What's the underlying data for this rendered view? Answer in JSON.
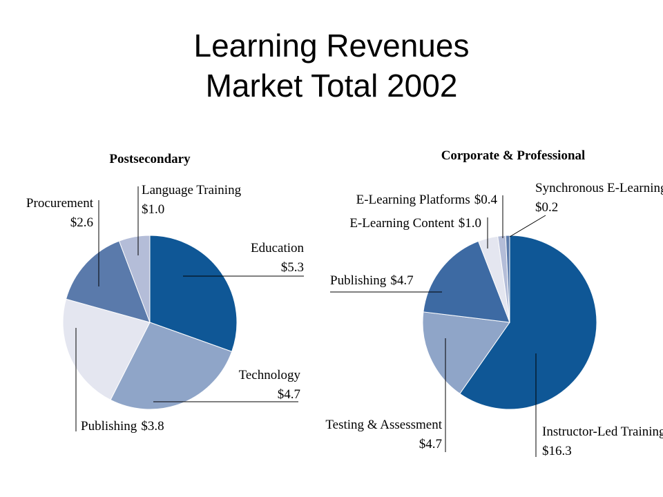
{
  "slide_title": [
    "Learning Revenues",
    "Market Total 2002"
  ],
  "chart_data": [
    {
      "type": "pie",
      "title": "Postsecondary",
      "categories": [
        "Education",
        "Technology",
        "Publishing",
        "Procurement",
        "Language Training"
      ],
      "values": [
        5.3,
        4.7,
        3.8,
        2.6,
        1.0
      ],
      "value_labels": [
        "$5.3",
        "$4.7",
        "$3.8",
        "$2.6",
        "$1.0"
      ],
      "colors": [
        "#0f5796",
        "#8fa5c8",
        "#e4e6f0",
        "#5a7aab",
        "#b4bdd8"
      ]
    },
    {
      "type": "pie",
      "title": "Corporate & Professional",
      "categories": [
        "Instructor-Led Training",
        "Testing & Assessment",
        "Publishing",
        "E-Learning Content",
        "E-Learning Platforms",
        "Synchronous E-Learning"
      ],
      "values": [
        16.3,
        4.7,
        4.7,
        1.0,
        0.4,
        0.2
      ],
      "value_labels": [
        "$16.3",
        "$4.7",
        "$4.7",
        "$1.0",
        "$0.4",
        "$0.2"
      ],
      "colors": [
        "#0f5796",
        "#8fa5c8",
        "#3d6aa3",
        "#e4e6f0",
        "#b4bdd8",
        "#5a7aab"
      ]
    }
  ]
}
